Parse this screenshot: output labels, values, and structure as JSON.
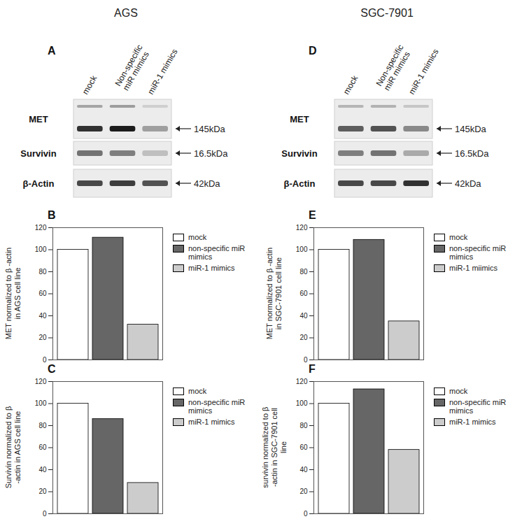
{
  "figure": {
    "columns": [
      {
        "title": "AGS",
        "blot": {
          "panel": "A",
          "lanes": [
            "mock",
            "Non-specific miR mimics",
            "miR-1 mimics"
          ],
          "rows": [
            {
              "label": "MET",
              "size": "145kDa"
            },
            {
              "label": "Survivin",
              "size": "16.5kDa"
            },
            {
              "label": "β-Actin",
              "size": "42kDa"
            }
          ]
        }
      },
      {
        "title": "SGC-7901",
        "blot": {
          "panel": "D",
          "lanes": [
            "mock",
            "Non-specific miR mimics",
            "miR-1 mimics"
          ],
          "rows": [
            {
              "label": "MET",
              "size": "145kDa"
            },
            {
              "label": "Survivin",
              "size": "16.5kDa"
            },
            {
              "label": "β-Actin",
              "size": "42kDa"
            }
          ]
        }
      }
    ]
  },
  "chart_data": [
    {
      "type": "bar",
      "panel": "B",
      "ylabel": "MET normalized to β -actin in AGS cell line",
      "categories": [
        "mock",
        "non-specific miR mimics",
        "miR-1 mimics"
      ],
      "values": [
        100,
        111,
        32
      ],
      "colors": [
        "#ffffff",
        "#666666",
        "#cccccc"
      ],
      "ylim": [
        0,
        120
      ],
      "yticks": [
        0,
        20,
        40,
        60,
        80,
        100,
        120
      ],
      "tick_labels": "y",
      "legend": "right"
    },
    {
      "type": "bar",
      "panel": "C",
      "ylabel": "Survivin normalized to β -actin in AGS cell line",
      "categories": [
        "mock",
        "non-specific miR mimics",
        "miR-1 mimics"
      ],
      "values": [
        100,
        86,
        28
      ],
      "colors": [
        "#ffffff",
        "#666666",
        "#cccccc"
      ],
      "ylim": [
        0,
        120
      ],
      "yticks": [
        0,
        20,
        40,
        60,
        80,
        100,
        120
      ],
      "tick_labels": "y",
      "legend": "right"
    },
    {
      "type": "bar",
      "panel": "E",
      "ylabel": "MET normalized to β -actin in SGC-7901 cell line",
      "categories": [
        "mock",
        "non-specific miR mimics",
        "miR-1 miimics"
      ],
      "values": [
        100,
        109,
        35
      ],
      "colors": [
        "#ffffff",
        "#666666",
        "#cccccc"
      ],
      "ylim": [
        0,
        120
      ],
      "yticks": [
        0,
        20,
        40,
        60,
        80,
        100,
        120
      ],
      "tick_labels": "y",
      "legend": "right"
    },
    {
      "type": "bar",
      "panel": "F",
      "ylabel": "survivin normalized to β -actin in SGC-7901 cell line",
      "categories": [
        "mock",
        "non-specific miR mimics",
        "miR-1 mimics"
      ],
      "values": [
        100,
        113,
        58
      ],
      "colors": [
        "#ffffff",
        "#666666",
        "#cccccc"
      ],
      "ylim": [
        0,
        120
      ],
      "yticks": [
        0,
        20,
        40,
        60,
        80,
        100,
        120
      ],
      "tick_labels": "y",
      "legend": "right"
    }
  ]
}
